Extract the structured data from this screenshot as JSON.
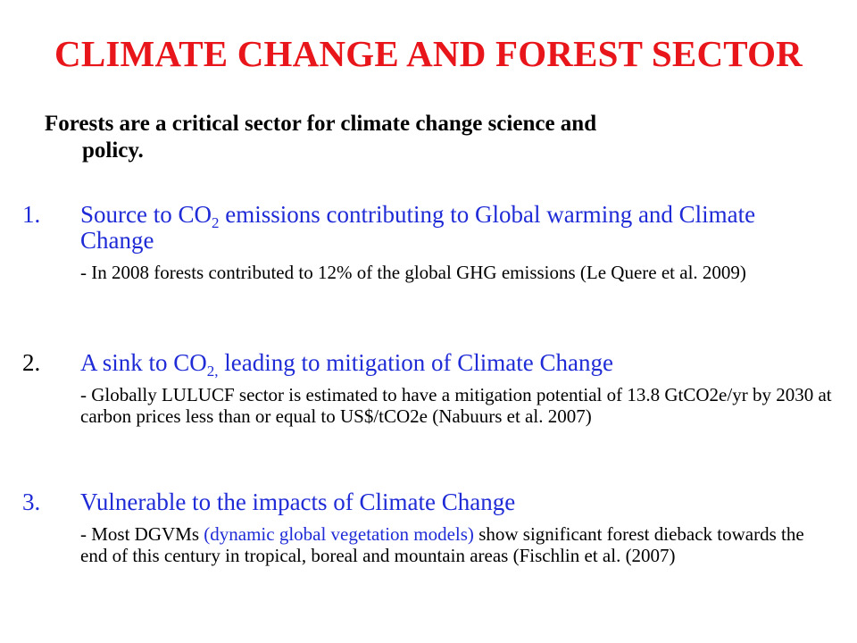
{
  "title": "CLIMATE CHANGE AND FOREST SECTOR",
  "intro": {
    "line1": "Forests are a critical sector for climate change science and",
    "line2": "policy."
  },
  "items": [
    {
      "number": "1.",
      "head_pre": "Source to CO",
      "head_sub": "2",
      "head_post": " emissions contributing to Global warming and Climate Change",
      "detail": "- In 2008 forests contributed to 12% of the global GHG emissions (Le Quere et al. 2009)"
    },
    {
      "number": "2.",
      "head_pre": "A sink to CO",
      "head_sub": "2,",
      "head_post": " leading to mitigation of Climate Change",
      "detail": "- Globally LULUCF sector is estimated to have a mitigation potential of 13.8 GtCO2e/yr by 2030 at carbon prices less than or equal to US$/tCO2e (Nabuurs et al. 2007)"
    },
    {
      "number": "3.",
      "head": "Vulnerable to the impacts of Climate Change",
      "detail_pre": "- Most DGVMs ",
      "detail_blue": "(dynamic global vegetation models)",
      "detail_post": " show significant forest dieback towards the end of this century in tropical, boreal and mountain areas (Fischlin et al. (2007)"
    }
  ],
  "colors": {
    "title": "#e8161b",
    "accent": "#1f2bd6",
    "text": "#000000"
  }
}
